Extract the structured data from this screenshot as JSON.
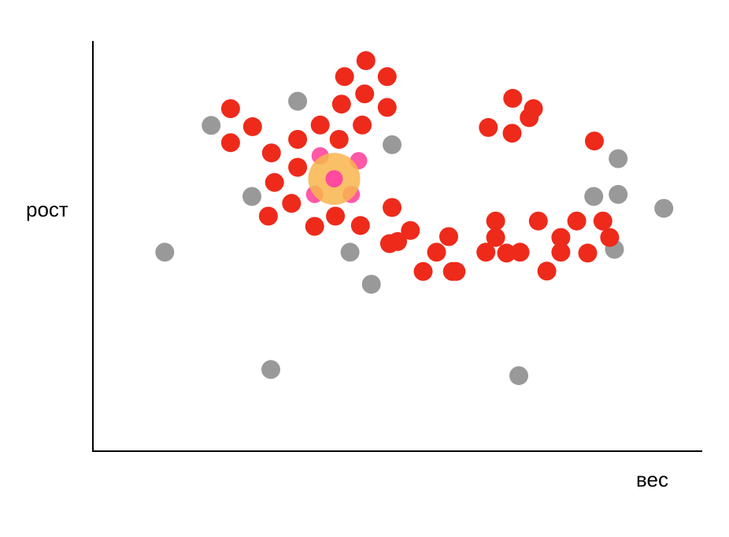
{
  "chart_data": {
    "type": "scatter",
    "title": "",
    "xlabel": "вес",
    "ylabel": "рост",
    "xlim": [
      0,
      100
    ],
    "ylim": [
      0,
      100
    ],
    "grid": false,
    "legend": "none",
    "series": [
      {
        "color": "#ee2a1b",
        "point_role": "red",
        "points": [
          [
            44.8,
            95.2
          ],
          [
            41.3,
            91.3
          ],
          [
            48.3,
            91.3
          ],
          [
            44.6,
            87.1
          ],
          [
            40.8,
            84.6
          ],
          [
            48.3,
            83.8
          ],
          [
            22.6,
            83.5
          ],
          [
            26.2,
            79.1
          ],
          [
            37.3,
            79.5
          ],
          [
            44.2,
            79.5
          ],
          [
            22.6,
            75.2
          ],
          [
            29.3,
            72.7
          ],
          [
            33.6,
            76.0
          ],
          [
            40.4,
            76.0
          ],
          [
            33.6,
            69.2
          ],
          [
            29.8,
            65.5
          ],
          [
            49.1,
            59.4
          ],
          [
            28.8,
            57.3
          ],
          [
            32.6,
            60.4
          ],
          [
            36.4,
            54.8
          ],
          [
            39.8,
            57.3
          ],
          [
            43.9,
            55.0
          ],
          [
            50.0,
            51.1
          ],
          [
            52.1,
            53.8
          ],
          [
            56.4,
            48.5
          ],
          [
            48.7,
            50.6
          ],
          [
            59.0,
            43.8
          ],
          [
            64.5,
            48.5
          ],
          [
            70.1,
            48.5
          ],
          [
            76.8,
            48.5
          ],
          [
            66.1,
            56.1
          ],
          [
            73.1,
            56.1
          ],
          [
            79.4,
            56.1
          ],
          [
            83.7,
            56.1
          ],
          [
            84.8,
            52.1
          ],
          [
            81.2,
            48.3
          ],
          [
            74.5,
            43.9
          ],
          [
            67.9,
            48.3
          ],
          [
            76.8,
            52.1
          ],
          [
            82.3,
            75.6
          ],
          [
            71.6,
            81.3
          ],
          [
            68.8,
            77.5
          ],
          [
            64.9,
            78.9
          ],
          [
            68.9,
            86.0
          ],
          [
            72.3,
            83.5
          ],
          [
            59.6,
            43.8
          ],
          [
            54.2,
            43.8
          ],
          [
            58.4,
            52.3
          ],
          [
            66.1,
            52.1
          ]
        ]
      },
      {
        "color": "#999999",
        "point_role": "grey",
        "points": [
          [
            19.4,
            79.4
          ],
          [
            33.6,
            85.3
          ],
          [
            49.1,
            74.7
          ],
          [
            26.1,
            62.1
          ],
          [
            42.2,
            48.5
          ],
          [
            45.7,
            40.7
          ],
          [
            11.8,
            48.5
          ],
          [
            29.2,
            19.9
          ],
          [
            69.9,
            18.4
          ],
          [
            86.2,
            71.3
          ],
          [
            86.2,
            62.6
          ],
          [
            82.2,
            62.1
          ],
          [
            93.7,
            59.2
          ],
          [
            85.6,
            49.2
          ]
        ]
      },
      {
        "color": "#ff4aa0",
        "point_role": "pink",
        "points": [
          [
            37.3,
            72.0
          ],
          [
            43.6,
            70.8
          ],
          [
            36.4,
            62.6
          ],
          [
            42.4,
            62.6
          ],
          [
            39.6,
            66.4
          ]
        ]
      },
      {
        "color": "#f8b54c",
        "point_role": "query-highlight",
        "points": [
          [
            39.6,
            66.4
          ]
        ]
      }
    ]
  }
}
